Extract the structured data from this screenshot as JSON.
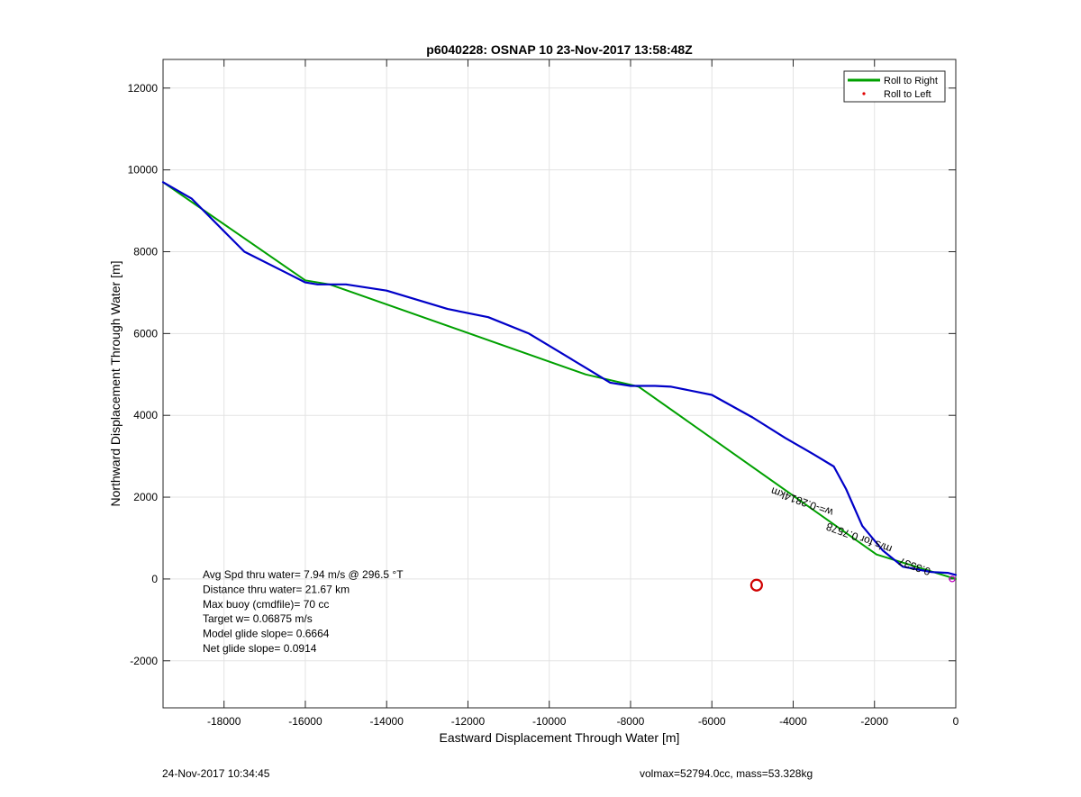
{
  "chart_data": {
    "type": "line",
    "title": "p6040228: OSNAP 10 23-Nov-2017 13:58:48Z",
    "xlabel": "Eastward Displacement Through Water [m]",
    "ylabel": "Northward Displacement Through Water [m]",
    "xlim": [
      -19500,
      0
    ],
    "ylim": [
      -3150,
      12700
    ],
    "xticks": [
      -18000,
      -16000,
      -14000,
      -12000,
      -10000,
      -8000,
      -6000,
      -4000,
      -2000,
      0
    ],
    "yticks": [
      -2000,
      0,
      2000,
      4000,
      6000,
      8000,
      10000,
      12000
    ],
    "grid": true,
    "legend": {
      "placement": "top-right",
      "entries": [
        {
          "label": "Roll to Right",
          "color": "#00a000",
          "marker": "line"
        },
        {
          "label": "Roll to Left",
          "color": "#e00000",
          "marker": "dot"
        }
      ]
    },
    "series": [
      {
        "color": "#00a000",
        "x": [
          0,
          -1950,
          -7800,
          -9100,
          -15400,
          -16000,
          -19500
        ],
        "y": [
          0,
          600,
          4700,
          5000,
          7200,
          7300,
          9700
        ]
      },
      {
        "color": "#0000c8",
        "x": [
          0,
          -200,
          -600,
          -1300,
          -1800,
          -2300,
          -2700,
          -3000,
          -3500,
          -4200,
          -5000,
          -6000,
          -7000,
          -7400,
          -8000,
          -8500,
          -9000,
          -9500,
          -10500,
          -11500,
          -12500,
          -14000,
          -15000,
          -15700,
          -16000,
          -16500,
          -17500,
          -18000,
          -18800,
          -19500
        ],
        "y": [
          100,
          150,
          170,
          300,
          700,
          1300,
          2200,
          2750,
          3050,
          3450,
          3950,
          4500,
          4700,
          4720,
          4720,
          4800,
          5100,
          5400,
          6000,
          6400,
          6600,
          7050,
          7200,
          7200,
          7250,
          7500,
          8000,
          8500,
          9300,
          9700
        ]
      }
    ],
    "markers": [
      {
        "x": -4900,
        "y": -150,
        "color": "#d00000",
        "shape": "circle"
      }
    ],
    "annotations": [
      {
        "text": "w=-0.2814km",
        "x": -3000,
        "y": 1700,
        "rotation": 20
      },
      {
        "text": "m/s for 0.7578",
        "x": -1550,
        "y": 800,
        "rotation": 20
      },
      {
        "text": "0.3537",
        "x": -600,
        "y": 250,
        "rotation": 20
      }
    ],
    "text_box": [
      "Avg Spd thru water=  7.94 m/s @ 296.5 °T",
      "Distance thru water= 21.67 km",
      "Max buoy (cmdfile)= 70 cc",
      "Target w= 0.06875 m/s",
      "Model glide slope= 0.6664",
      "Net glide slope= 0.0914"
    ]
  },
  "footer": {
    "left": "24-Nov-2017 10:34:45",
    "right": "volmax=52794.0cc, mass=53.328kg"
  }
}
